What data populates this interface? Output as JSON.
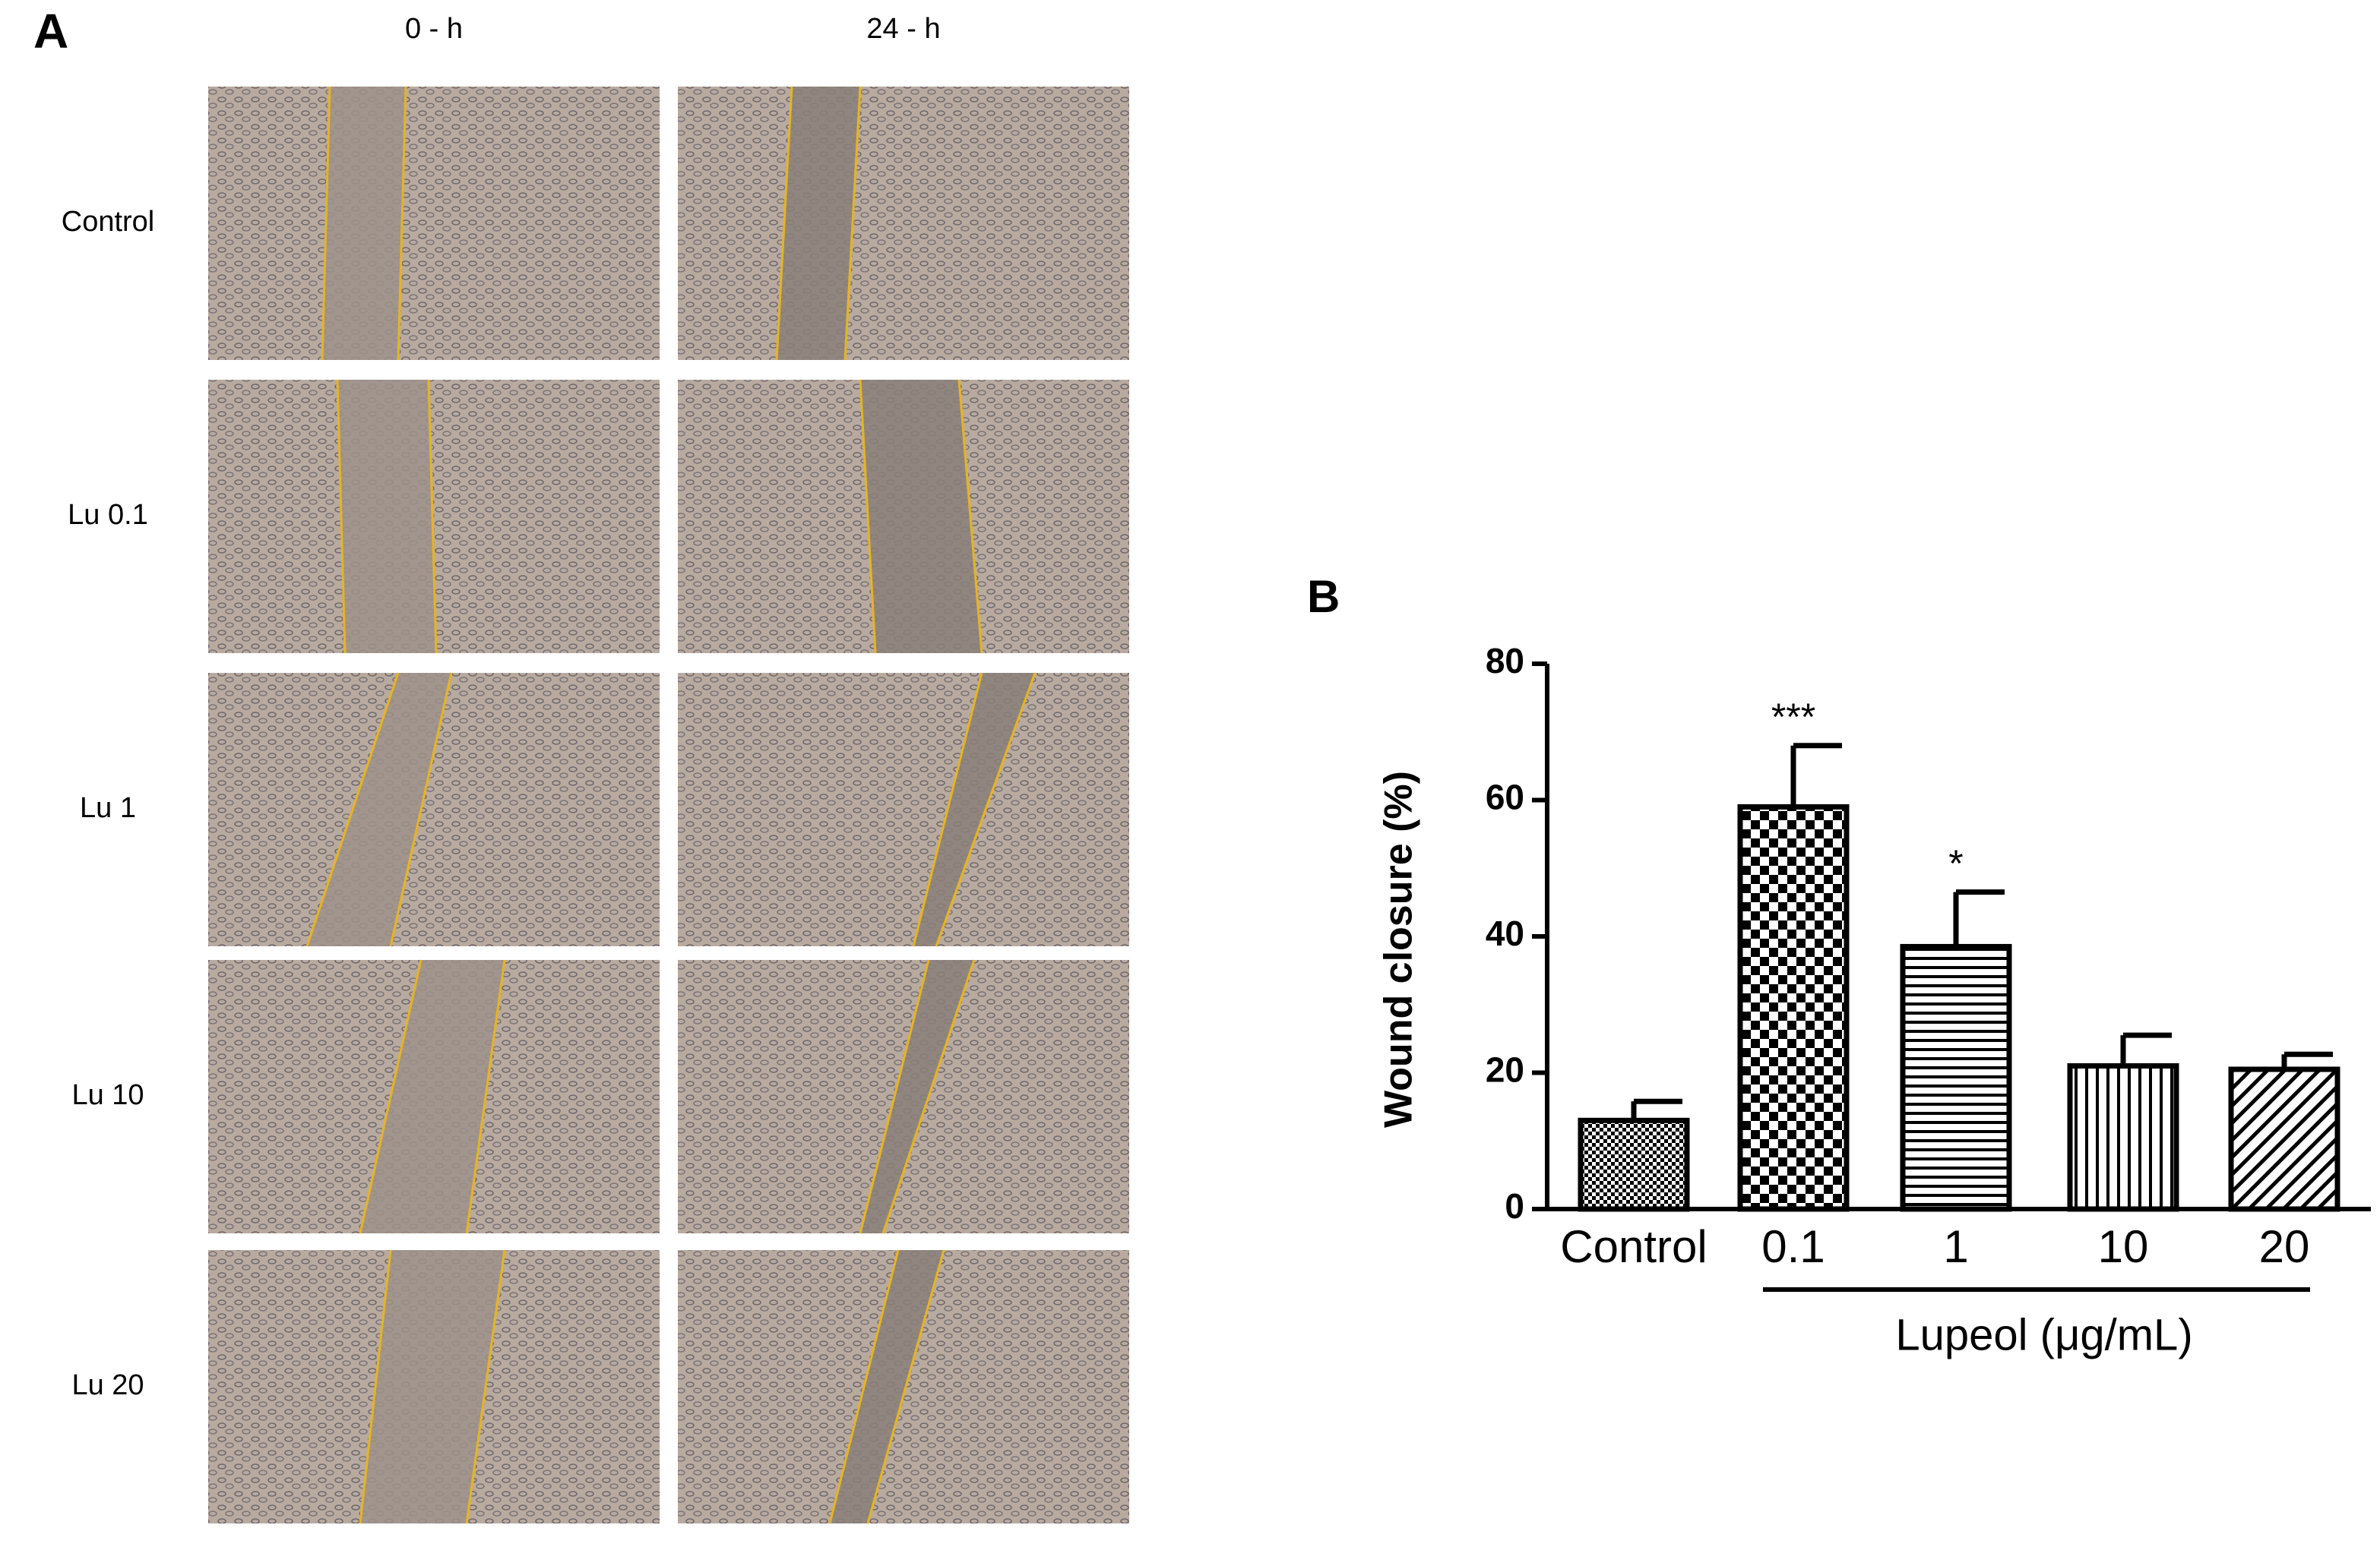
{
  "panel_a": {
    "label": "A",
    "columns": [
      "0 - h",
      "24 - h"
    ],
    "rows": [
      "Control",
      "Lu 0.1",
      "Lu 1",
      "Lu 10",
      "Lu 20"
    ]
  },
  "chart_data": {
    "type": "bar",
    "panel_label": "B",
    "y_label": "Wound closure (%)",
    "categories": [
      "Control",
      "0.1",
      "1",
      "10",
      "20"
    ],
    "values": [
      13,
      59,
      38.5,
      21,
      20.5
    ],
    "errors": [
      2.8,
      9,
      8,
      4.5,
      2.2
    ],
    "significance": [
      null,
      "***",
      "*",
      null,
      null
    ],
    "patterns": [
      "checker-fine",
      "checker",
      "horizontal",
      "vertical",
      "diagonal"
    ],
    "group_label": "Lupeol (μg/mL)",
    "ylim": [
      0,
      80
    ],
    "yticks": [
      0,
      20,
      40,
      60,
      80
    ],
    "color": "#000000"
  }
}
